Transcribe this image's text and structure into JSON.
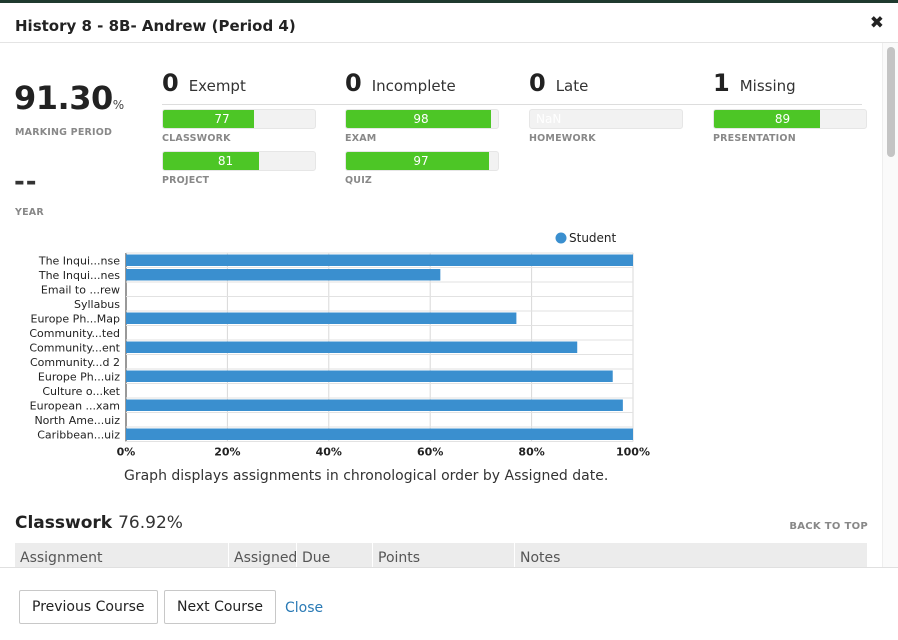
{
  "window": {
    "title": "History 8 - 8B- Andrew (Period 4)"
  },
  "summary": {
    "marking_period_value": "91.30",
    "marking_period_unit": "%",
    "marking_period_label": "MARKING PERIOD",
    "year_value": "--",
    "year_label": "YEAR"
  },
  "stats": [
    {
      "count": "0",
      "label": "Exempt"
    },
    {
      "count": "0",
      "label": "Incomplete"
    },
    {
      "count": "0",
      "label": "Late"
    },
    {
      "count": "1",
      "label": "Missing"
    }
  ],
  "categories": [
    {
      "name": "CLASSWORK",
      "value_text": "77",
      "fraction": 0.77
    },
    {
      "name": "EXAM",
      "value_text": "98",
      "fraction": 0.98
    },
    {
      "name": "HOMEWORK",
      "value_text": "NaN",
      "fraction": 0
    },
    {
      "name": "PRESENTATION",
      "value_text": "89",
      "fraction": 0.89
    },
    {
      "name": "PROJECT",
      "value_text": "81",
      "fraction": 0.81
    },
    {
      "name": "QUIZ",
      "value_text": "97",
      "fraction": 0.97
    }
  ],
  "chart_data": {
    "type": "bar",
    "orientation": "horizontal",
    "categories": [
      "The Inqui...nse",
      "The Inqui...nes",
      "Email to ...rew",
      "Syllabus",
      "Europe Ph...Map",
      "Community...ted",
      "Community...ent",
      "Community...d 2",
      "Europe Ph...uiz",
      "Culture o...ket",
      "European ...xam",
      "North Ame...uiz",
      "Caribbean...uiz"
    ],
    "series": [
      {
        "name": "Student",
        "values": [
          100,
          62,
          0,
          0,
          77,
          0,
          89,
          0,
          96,
          0,
          98,
          0,
          100
        ]
      }
    ],
    "xlim": [
      0,
      100
    ],
    "xticks": [
      "0%",
      "20%",
      "40%",
      "60%",
      "80%",
      "100%"
    ],
    "legend_position": "top-right",
    "grid": true,
    "color": "#3a8fcf"
  },
  "chart_caption": "Graph displays assignments in chronological order by Assigned date.",
  "section": {
    "name": "Classwork",
    "score": "76.92%",
    "back_to_top": "BACK TO TOP",
    "columns": [
      "Assignment",
      "Assigned",
      "Due",
      "Points",
      "Notes"
    ]
  },
  "footer": {
    "previous": "Previous Course",
    "next": "Next Course",
    "close": "Close"
  },
  "colors": {
    "accent": "#2a7ab5",
    "bar_green": "#4dc626",
    "chart_blue": "#3a8fcf"
  }
}
